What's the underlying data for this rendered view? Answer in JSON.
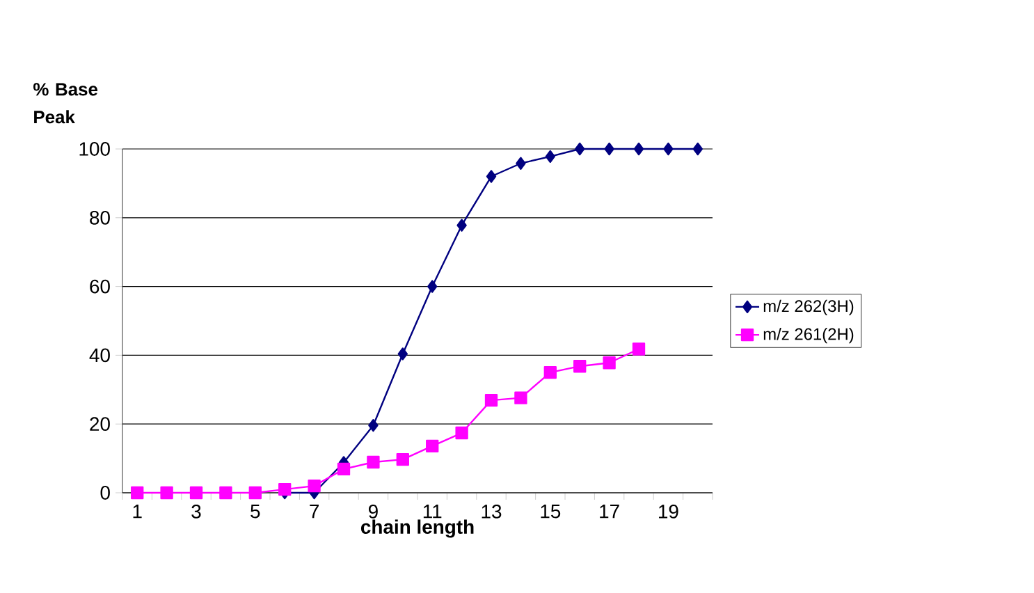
{
  "chart_data": {
    "type": "line",
    "xlabel": "chain length",
    "ylabel": "% Base Peak",
    "categories": [
      "1",
      null,
      "3",
      null,
      "5",
      null,
      "7",
      null,
      "9",
      null,
      "11",
      null,
      "13",
      null,
      "15",
      null,
      "17",
      null,
      "19",
      null
    ],
    "series": [
      {
        "name": "m/z 262(3H)",
        "color": "#000080",
        "marker": "diamond",
        "values": [
          null,
          null,
          null,
          null,
          null,
          0,
          0,
          8.8,
          19.6,
          40.4,
          60,
          77.8,
          92,
          95.8,
          97.8,
          100,
          100,
          100,
          100,
          100
        ]
      },
      {
        "name": "m/z 261(2H)",
        "color": "#ff00ff",
        "marker": "square",
        "values": [
          0,
          0,
          0,
          0,
          0,
          1,
          2,
          6.9,
          8.9,
          9.7,
          13.6,
          17.4,
          26.9,
          27.6,
          35,
          36.8,
          37.8,
          41.8,
          null,
          null
        ]
      }
    ],
    "ylim": [
      0,
      100
    ],
    "yticks": [
      0,
      20,
      40,
      60,
      80,
      100
    ],
    "grid": "y",
    "legend": "right"
  }
}
